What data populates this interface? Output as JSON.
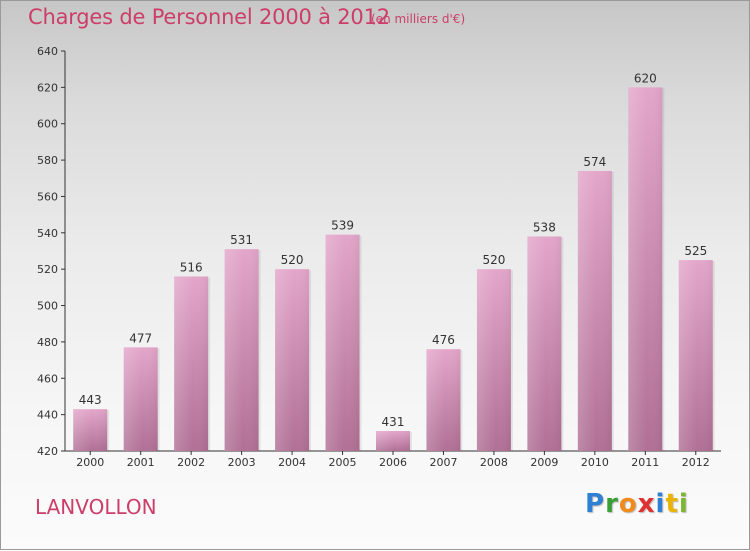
{
  "header": {
    "title": "Charges de Personnel 2000 à 2012",
    "subtitle": "(en milliers d'€)"
  },
  "footer": {
    "commune": "LANVOLLON",
    "logo_letters": [
      "P",
      "r",
      "o",
      "x",
      "i",
      "t",
      "i"
    ]
  },
  "colors": {
    "accent": "#cc3e6a",
    "bar_light": "#e3a6ca",
    "bar_dark": "#b07095"
  },
  "chart_data": {
    "type": "bar",
    "title": "Charges de Personnel 2000 à 2012",
    "subtitle": "(en milliers d'€)",
    "categories": [
      "2000",
      "2001",
      "2002",
      "2003",
      "2004",
      "2005",
      "2006",
      "2007",
      "2008",
      "2009",
      "2010",
      "2011",
      "2012"
    ],
    "values": [
      443,
      477,
      516,
      531,
      520,
      539,
      431,
      476,
      520,
      538,
      574,
      620,
      525
    ],
    "ylim": [
      420,
      640
    ],
    "yticks": [
      420,
      440,
      460,
      480,
      500,
      520,
      540,
      560,
      580,
      600,
      620,
      640
    ],
    "grid": false,
    "data_labels": true
  }
}
